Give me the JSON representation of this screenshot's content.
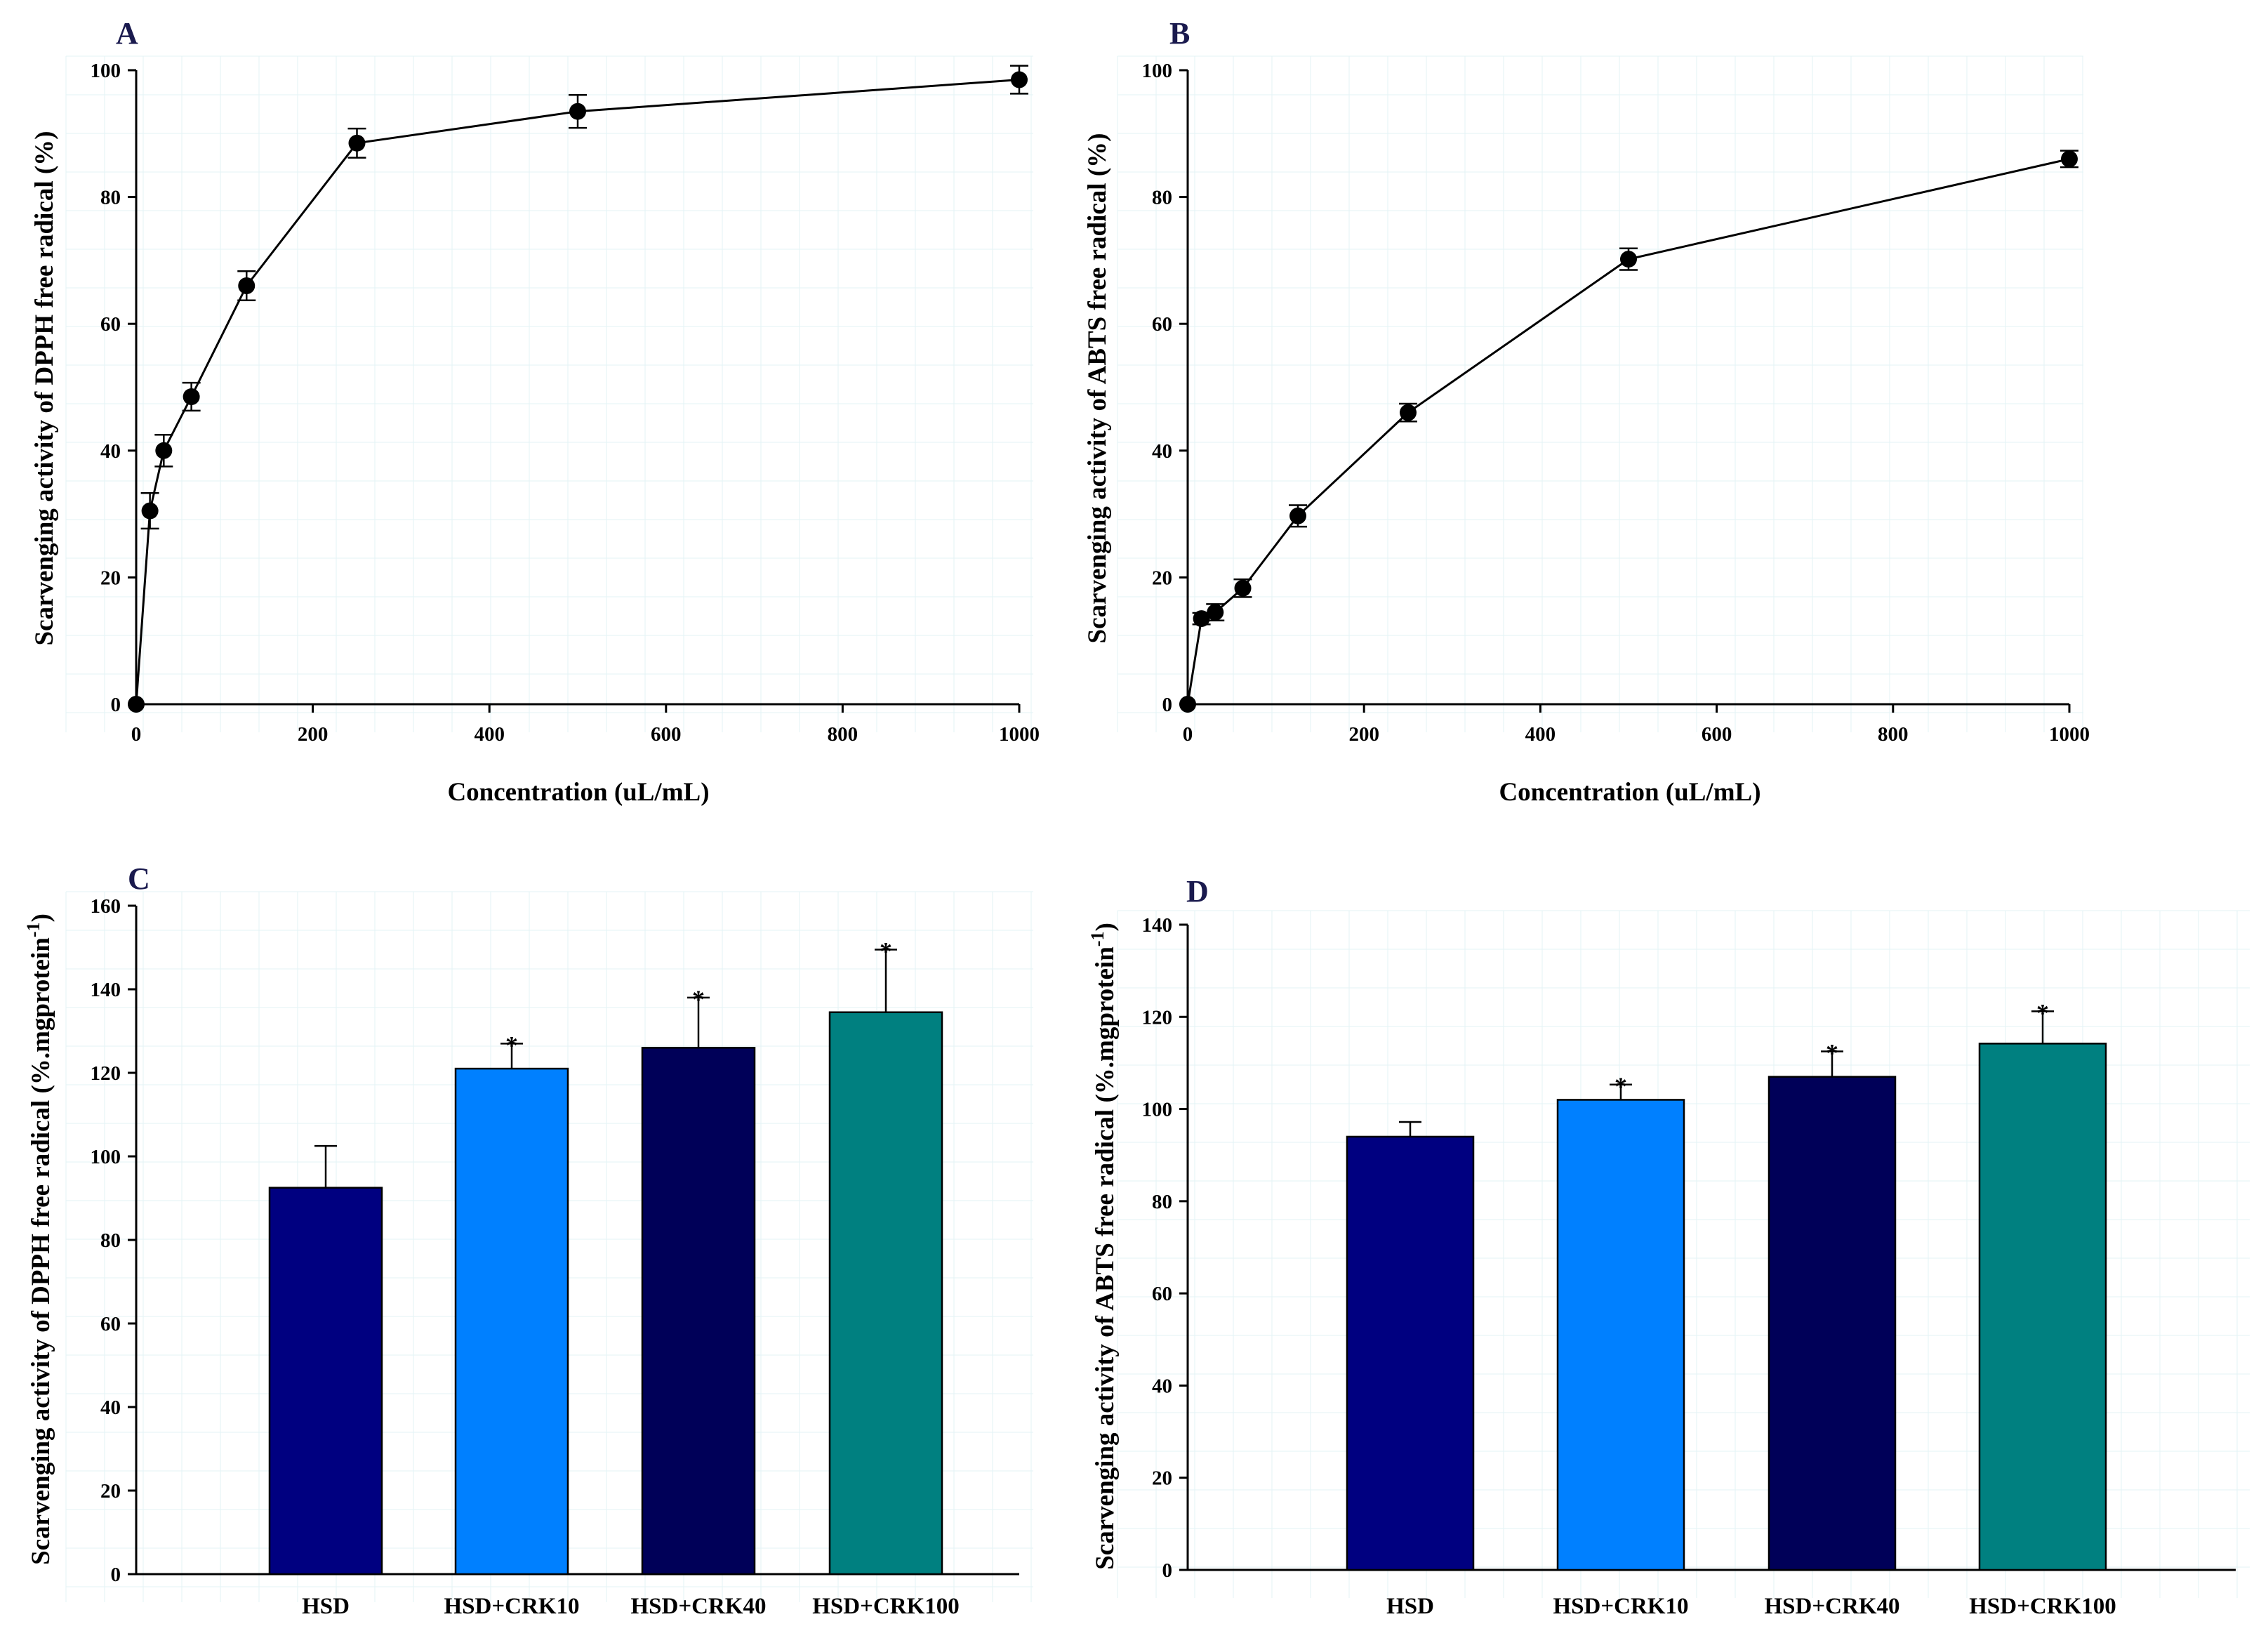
{
  "chart_data": [
    {
      "id": "A",
      "type": "line",
      "panel_label": "A",
      "xlabel": "Concentration (uL/mL)",
      "ylabel": "Scarvenging activity of DPPH free radical (%)",
      "xlim": [
        0,
        1000
      ],
      "ylim": [
        0,
        100
      ],
      "xticks": [
        0,
        200,
        400,
        600,
        800,
        1000
      ],
      "yticks": [
        0,
        20,
        40,
        60,
        80,
        100
      ],
      "x": [
        0,
        15.6,
        31.25,
        62.5,
        125,
        250,
        500,
        1000
      ],
      "y": [
        0,
        30.5,
        40,
        48.5,
        66,
        88.5,
        93.5,
        98.5
      ],
      "err": [
        0,
        2.8,
        2.5,
        2.2,
        2.3,
        2.3,
        2.6,
        2.2
      ]
    },
    {
      "id": "B",
      "type": "line",
      "panel_label": "B",
      "xlabel": "Concentration (uL/mL)",
      "ylabel": "Scarvenging activity of ABTS free radical (%)",
      "xlim": [
        0,
        1000
      ],
      "ylim": [
        0,
        100
      ],
      "xticks": [
        0,
        200,
        400,
        600,
        800,
        1000
      ],
      "yticks": [
        0,
        20,
        40,
        60,
        80,
        100
      ],
      "x": [
        0,
        15.6,
        31.25,
        62.5,
        125,
        250,
        500,
        1000
      ],
      "y": [
        0,
        13.5,
        14.5,
        18.3,
        29.7,
        46,
        70.2,
        86
      ],
      "err": [
        0,
        0.9,
        1.3,
        1.4,
        1.7,
        1.4,
        1.7,
        1.3
      ]
    },
    {
      "id": "C",
      "type": "bar",
      "panel_label": "C",
      "xlabel": "",
      "ylabel": "Scarvenging activity of DPPH free radical (%.mgprotein",
      "ylabel_sup": "-1",
      "ylabel_end": ")",
      "ylim": [
        0,
        160
      ],
      "yticks": [
        0,
        20,
        40,
        60,
        80,
        100,
        120,
        140,
        160
      ],
      "categories": [
        "HSD",
        "HSD+CRK10",
        "HSD+CRK40",
        "HSD+CRK100"
      ],
      "values": [
        92.5,
        121,
        126,
        134.5
      ],
      "err": [
        10,
        6,
        12,
        15
      ],
      "colors": [
        "#000080",
        "#0080ff",
        "#000058",
        "#008080"
      ],
      "significance": [
        "",
        "*",
        "*",
        "*"
      ]
    },
    {
      "id": "D",
      "type": "bar",
      "panel_label": "D",
      "xlabel": "",
      "ylabel": "Scarvenging activity of ABTS free radical (%.mgprotein",
      "ylabel_sup": "-1",
      "ylabel_end": ")",
      "ylim": [
        0,
        140
      ],
      "yticks": [
        0,
        20,
        40,
        60,
        80,
        100,
        120,
        140
      ],
      "categories": [
        "HSD",
        "HSD+CRK10",
        "HSD+CRK40",
        "HSD+CRK100"
      ],
      "values": [
        94,
        102,
        107,
        114.2
      ],
      "err": [
        3.2,
        3.3,
        5.5,
        7
      ],
      "colors": [
        "#000080",
        "#0080ff",
        "#000058",
        "#008080"
      ],
      "significance": [
        "",
        "*",
        "*",
        "*"
      ]
    }
  ]
}
